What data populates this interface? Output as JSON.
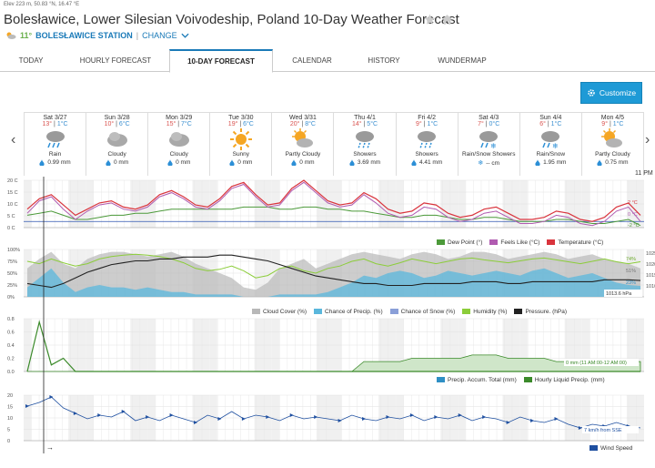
{
  "header": {
    "elevation": "Elev 223 m, 50.83 °N, 16.47 °E",
    "title": "Bolesławice, Lower Silesian Voivodeship, Poland 10-Day Weather Forecast",
    "current_temp": "11°",
    "station": "BOLESŁAWICE STATION",
    "change_label": "CHANGE"
  },
  "tabs": [
    {
      "label": "TODAY"
    },
    {
      "label": "HOURLY FORECAST"
    },
    {
      "label": "10-DAY FORECAST"
    },
    {
      "label": "CALENDAR"
    },
    {
      "label": "HISTORY"
    },
    {
      "label": "WUNDERMAP"
    }
  ],
  "customize_label": "Customize",
  "time_label": "11 PM",
  "days": [
    {
      "name": "Sat 3/27",
      "hi": "13°",
      "lo": "1°C",
      "cond": "Rain",
      "precip": "0.99 mm",
      "icon": "rain"
    },
    {
      "name": "Sun 3/28",
      "hi": "10°",
      "lo": "6°C",
      "cond": "Cloudy",
      "precip": "0 mm",
      "icon": "cloud"
    },
    {
      "name": "Mon 3/29",
      "hi": "15°",
      "lo": "7°C",
      "cond": "Cloudy",
      "precip": "0 mm",
      "icon": "cloud"
    },
    {
      "name": "Tue 3/30",
      "hi": "19°",
      "lo": "6°C",
      "cond": "Sunny",
      "precip": "0 mm",
      "icon": "sun"
    },
    {
      "name": "Wed 3/31",
      "hi": "20°",
      "lo": "8°C",
      "cond": "Partly Cloudy",
      "precip": "0 mm",
      "icon": "partly"
    },
    {
      "name": "Thu 4/1",
      "hi": "14°",
      "lo": "5°C",
      "cond": "Showers",
      "precip": "3.69 mm",
      "icon": "showers"
    },
    {
      "name": "Fri 4/2",
      "hi": "9°",
      "lo": "1°C",
      "cond": "Showers",
      "precip": "4.41 mm",
      "icon": "showers"
    },
    {
      "name": "Sat 4/3",
      "hi": "7°",
      "lo": "0°C",
      "cond": "Rain/Snow Showers",
      "precip": "-- cm",
      "icon": "rainsnow"
    },
    {
      "name": "Sun 4/4",
      "hi": "6°",
      "lo": "1°C",
      "cond": "Rain/Snow",
      "precip": "1.95 mm",
      "icon": "rainsnow"
    },
    {
      "name": "Mon 4/5",
      "hi": "9°",
      "lo": "1°C",
      "cond": "Partly Cloudy",
      "precip": "0.75 mm",
      "icon": "partly"
    }
  ],
  "charts": {
    "temp": {
      "yticks": [
        "20 C",
        "15 C",
        "10 C",
        "5 C",
        "0 C"
      ],
      "end_labels": [
        "2 °C",
        "0 °C",
        "-2 °C"
      ],
      "legend": [
        "Dew Point (°)",
        "Feels Like (°C)",
        "Temperature (°C)"
      ]
    },
    "cloud": {
      "yticks": [
        "100%",
        "75%",
        "50%",
        "25%",
        "0%"
      ],
      "right_ticks": [
        "1025",
        "1020",
        "1015",
        "1010"
      ],
      "end_labels": [
        "74%",
        "51%",
        "23%"
      ],
      "pressure_label": "1013.6 hPa",
      "legend": [
        "Cloud Cover (%)",
        "Chance of Precip. (%)",
        "Chance of Snow (%)",
        "Humidity (%)",
        "Pressure. (hPa)"
      ]
    },
    "precip": {
      "yticks": [
        "0.8",
        "0.6",
        "0.4",
        "0.2",
        "0.0"
      ],
      "annotation": "0 mm (11 AM:00-12 AM:00)",
      "legend": [
        "Precip. Accum. Total (mm)",
        "Hourly Liquid Precip. (mm)"
      ]
    },
    "wind": {
      "yticks": [
        "20",
        "15",
        "10",
        "5",
        "0"
      ],
      "annotation": "7 km/h from SSE",
      "legend": [
        "Wind Speed"
      ]
    }
  },
  "colors": {
    "dew": "#4c9a3a",
    "feels": "#b05bb0",
    "temp": "#d9343d",
    "cloud": "#b8b8b8",
    "precip_chance": "#5ab7dc",
    "snow_chance": "#8a9fd8",
    "humidity": "#8ccd3a",
    "pressure": "#222222",
    "accum": "#2f8fc5",
    "hourly": "#3b8a2a",
    "wind": "#1e4fa0"
  },
  "chart_data": [
    {
      "type": "line",
      "title": "Temperature",
      "ylim": [
        -3,
        20
      ],
      "ylabel": "C",
      "series": [
        {
          "name": "Temperature (°C)",
          "values": [
            6,
            11,
            13,
            8,
            3,
            6,
            9,
            10,
            7,
            6,
            8,
            13,
            15,
            12,
            8,
            7,
            11,
            17,
            19,
            13,
            8,
            9,
            16,
            20,
            15,
            10,
            8,
            9,
            14,
            11,
            6,
            4,
            5,
            9,
            8,
            4,
            2,
            3,
            6,
            7,
            4,
            1,
            1,
            2,
            5,
            4,
            1,
            0,
            2,
            7,
            9,
            3
          ]
        },
        {
          "name": "Feels Like (°C)",
          "values": [
            4,
            10,
            12,
            6,
            1,
            5,
            8,
            9,
            6,
            5,
            7,
            12,
            14,
            11,
            7,
            6,
            10,
            16,
            18,
            12,
            7,
            8,
            15,
            19,
            14,
            9,
            7,
            8,
            13,
            9,
            4,
            2,
            3,
            7,
            6,
            2,
            0,
            1,
            4,
            5,
            2,
            -1,
            -1,
            0,
            3,
            2,
            -1,
            -2,
            0,
            5,
            7,
            0
          ]
        },
        {
          "name": "Dew Point (°)",
          "values": [
            3,
            4,
            5,
            3,
            1,
            1,
            2,
            3,
            3,
            4,
            4,
            5,
            6,
            6,
            6,
            6,
            6,
            6,
            7,
            7,
            7,
            6,
            6,
            7,
            7,
            6,
            6,
            5,
            5,
            4,
            3,
            2,
            2,
            3,
            3,
            2,
            1,
            1,
            2,
            2,
            1,
            0,
            0,
            0,
            1,
            1,
            0,
            -1,
            -1,
            0,
            1,
            -2
          ]
        }
      ]
    },
    {
      "type": "area",
      "title": "Cloud / Precip / Humidity / Pressure",
      "ylim": [
        0,
        100
      ],
      "series": [
        {
          "name": "Cloud Cover (%)",
          "values": [
            60,
            80,
            95,
            70,
            60,
            80,
            90,
            95,
            95,
            90,
            85,
            90,
            95,
            85,
            70,
            60,
            50,
            40,
            20,
            15,
            30,
            60,
            70,
            80,
            60,
            70,
            80,
            90,
            95,
            90,
            85,
            80,
            90,
            95,
            90,
            80,
            85,
            95,
            95,
            90,
            80,
            85,
            90,
            95,
            90,
            80,
            85,
            90,
            80,
            75,
            70,
            60
          ]
        },
        {
          "name": "Chance of Precip. (%)",
          "values": [
            20,
            40,
            60,
            30,
            10,
            20,
            25,
            20,
            20,
            15,
            20,
            15,
            10,
            10,
            5,
            5,
            5,
            5,
            0,
            0,
            0,
            5,
            5,
            5,
            5,
            10,
            20,
            30,
            45,
            40,
            50,
            55,
            50,
            40,
            45,
            55,
            50,
            45,
            50,
            55,
            50,
            45,
            55,
            60,
            50,
            40,
            45,
            50,
            40,
            30,
            25,
            23
          ]
        },
        {
          "name": "Humidity (%)",
          "values": [
            75,
            70,
            80,
            72,
            65,
            70,
            80,
            85,
            88,
            90,
            88,
            85,
            80,
            72,
            60,
            55,
            58,
            65,
            55,
            40,
            45,
            60,
            65,
            55,
            50,
            60,
            65,
            75,
            80,
            70,
            65,
            72,
            80,
            75,
            70,
            75,
            80,
            82,
            78,
            75,
            72,
            76,
            80,
            82,
            78,
            74,
            70,
            75,
            80,
            74,
            70,
            74
          ]
        },
        {
          "name": "Pressure. (hPa)",
          "values": [
            1012,
            1011,
            1010,
            1012,
            1015,
            1018,
            1020,
            1022,
            1023,
            1024,
            1024,
            1025,
            1025,
            1026,
            1026,
            1026,
            1027,
            1027,
            1026,
            1025,
            1024,
            1022,
            1020,
            1018,
            1016,
            1015,
            1014,
            1013,
            1012,
            1012,
            1011,
            1011,
            1011,
            1012,
            1012,
            1012,
            1012,
            1013,
            1013,
            1013,
            1012,
            1012,
            1013,
            1013,
            1013,
            1013,
            1013,
            1013,
            1014,
            1014,
            1014,
            1013.6
          ]
        }
      ]
    },
    {
      "type": "area",
      "title": "Precipitation",
      "ylim": [
        0,
        0.8
      ],
      "series": [
        {
          "name": "Precip. Accum. Total (mm)",
          "values": [
            0,
            0,
            0,
            0,
            0,
            0,
            0,
            0,
            0,
            0,
            0,
            0,
            0,
            0,
            0,
            0,
            0,
            0,
            0,
            0,
            0,
            0,
            0,
            0,
            0,
            0,
            0,
            0,
            0.15,
            0.15,
            0.15,
            0.15,
            0.2,
            0.2,
            0.2,
            0.2,
            0.2,
            0.25,
            0.25,
            0.25,
            0.2,
            0.2,
            0.2,
            0.2,
            0.15,
            0.15,
            0.15,
            0.15,
            0.15,
            0.15,
            0.15,
            0.15
          ]
        },
        {
          "name": "Hourly Liquid Precip. (mm)",
          "values": [
            0,
            0.75,
            0.1,
            0.2,
            0,
            0,
            0,
            0,
            0,
            0,
            0,
            0,
            0,
            0,
            0,
            0,
            0,
            0,
            0,
            0,
            0,
            0,
            0,
            0,
            0,
            0,
            0,
            0,
            0,
            0,
            0,
            0,
            0,
            0,
            0,
            0,
            0,
            0,
            0,
            0,
            0,
            0,
            0,
            0,
            0,
            0,
            0,
            0,
            0,
            0,
            0,
            0
          ]
        }
      ]
    },
    {
      "type": "line",
      "title": "Wind Speed",
      "ylim": [
        0,
        25
      ],
      "series": [
        {
          "name": "Wind Speed",
          "values": [
            19,
            21,
            24,
            18,
            15,
            12,
            14,
            13,
            16,
            11,
            13,
            11,
            14,
            12,
            10,
            14,
            12,
            16,
            12,
            14,
            13,
            11,
            14,
            12,
            13,
            12,
            11,
            14,
            12,
            11,
            13,
            12,
            14,
            11,
            13,
            12,
            14,
            11,
            13,
            12,
            10,
            13,
            11,
            10,
            12,
            9,
            7,
            9,
            8,
            10,
            8,
            7
          ]
        }
      ]
    }
  ]
}
